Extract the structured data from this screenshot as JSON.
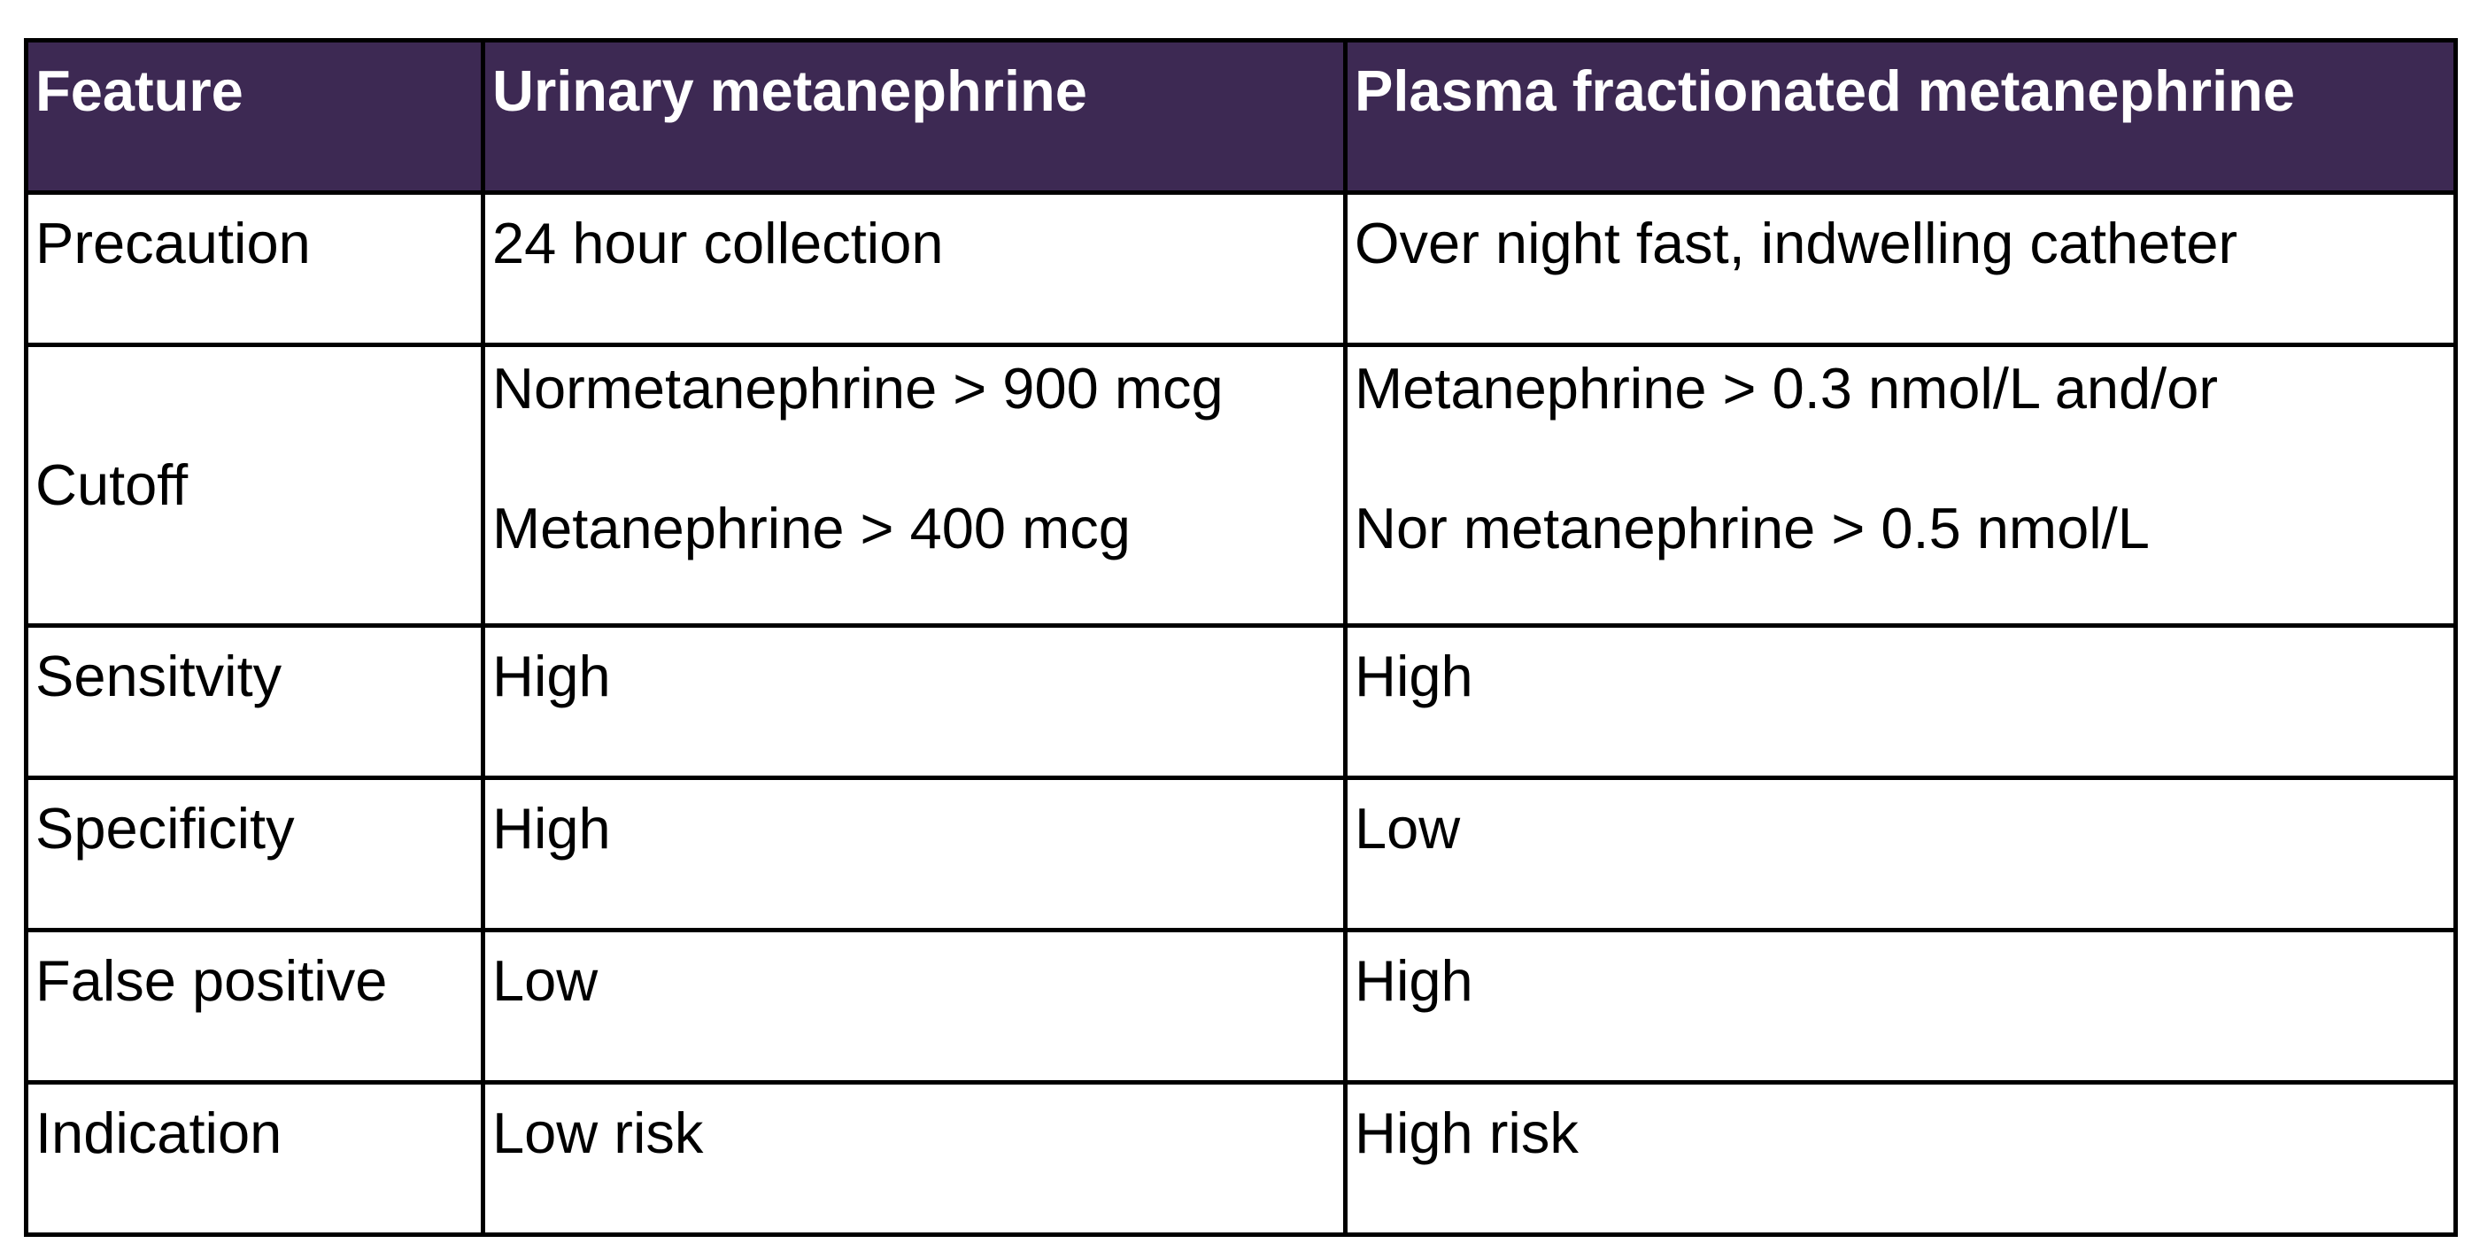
{
  "table": {
    "headers": [
      "Feature",
      "Urinary metanephrine",
      "Plasma fractionated metanephrine"
    ],
    "rows": [
      {
        "feature": "Precaution",
        "urinary": [
          "24 hour collection"
        ],
        "plasma": [
          "Over night fast, indwelling catheter"
        ]
      },
      {
        "feature": "Cutoff",
        "urinary": [
          "Normetanephrine > 900 mcg",
          "Metanephrine > 400 mcg"
        ],
        "plasma": [
          "Metanephrine > 0.3 nmol/L and/or",
          "Nor metanephrine > 0.5 nmol/L"
        ]
      },
      {
        "feature": "Sensitvity",
        "urinary": [
          "High"
        ],
        "plasma": [
          "High"
        ]
      },
      {
        "feature": "Specificity",
        "urinary": [
          "High"
        ],
        "plasma": [
          "Low"
        ]
      },
      {
        "feature": "False positive",
        "urinary": [
          "Low"
        ],
        "plasma": [
          "High"
        ]
      },
      {
        "feature": "Indication",
        "urinary": [
          "Low risk"
        ],
        "plasma": [
          "High risk"
        ]
      }
    ]
  },
  "colors": {
    "header_background": "#3d2953",
    "header_text": "#ffffff",
    "border": "#000000",
    "body_text": "#000000"
  }
}
